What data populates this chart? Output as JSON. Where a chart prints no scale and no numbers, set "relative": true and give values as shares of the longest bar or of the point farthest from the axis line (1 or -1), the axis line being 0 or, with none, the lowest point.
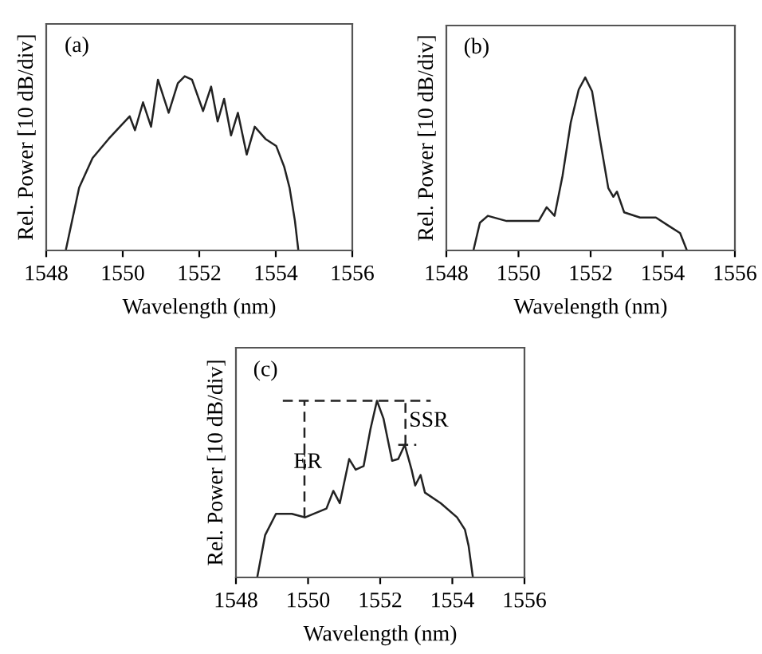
{
  "chart_data": [
    {
      "type": "line",
      "relative": true,
      "xlabel": "Wavelength (nm)",
      "ylabel": "Rel. Power [10 dB/div]",
      "xlim": [
        1548,
        1556
      ],
      "xticks": [
        1548,
        1550,
        1552,
        1554,
        1556
      ],
      "tick_labels": "x",
      "annotations": [
        "(a)"
      ],
      "series": [
        {
          "color": "#222222",
          "x": [
            1548.51,
            1548.86,
            1549.21,
            1549.63,
            1549.97,
            1550.18,
            1550.32,
            1550.53,
            1550.74,
            1550.92,
            1551.2,
            1551.44,
            1551.62,
            1551.81,
            1552.1,
            1552.31,
            1552.48,
            1552.65,
            1552.83,
            1553.01,
            1553.24,
            1553.45,
            1553.73,
            1554.01,
            1554.22,
            1554.36,
            1554.5,
            1554.59
          ],
          "values": [
            0,
            0.36,
            0.53,
            0.64,
            0.72,
            0.77,
            0.69,
            0.85,
            0.71,
            0.98,
            0.79,
            0.96,
            1.0,
            0.98,
            0.8,
            0.94,
            0.74,
            0.87,
            0.66,
            0.79,
            0.55,
            0.71,
            0.64,
            0.6,
            0.48,
            0.36,
            0.17,
            0
          ]
        }
      ]
    },
    {
      "type": "line",
      "relative": true,
      "xlabel": "Wavelength (nm)",
      "ylabel": "Rel. Power [10 dB/div]",
      "xlim": [
        1548,
        1556
      ],
      "xticks": [
        1548,
        1550,
        1552,
        1554,
        1556
      ],
      "tick_labels": "x",
      "annotations": [
        "(b)"
      ],
      "series": [
        {
          "color": "#222222",
          "x": [
            1548.75,
            1548.93,
            1549.15,
            1549.67,
            1550.56,
            1550.78,
            1551.0,
            1551.22,
            1551.45,
            1551.67,
            1551.85,
            1552.04,
            1552.26,
            1552.49,
            1552.63,
            1552.73,
            1552.93,
            1553.37,
            1553.81,
            1554.18,
            1554.48,
            1554.67
          ],
          "values": [
            0,
            0.16,
            0.2,
            0.17,
            0.17,
            0.25,
            0.2,
            0.43,
            0.74,
            0.93,
            1.0,
            0.92,
            0.64,
            0.36,
            0.31,
            0.34,
            0.22,
            0.19,
            0.19,
            0.14,
            0.1,
            0
          ]
        }
      ]
    },
    {
      "type": "line",
      "relative": true,
      "xlabel": "Wavelength (nm)",
      "ylabel": "Rel. Power [10 dB/div]",
      "xlim": [
        1548,
        1556
      ],
      "xticks": [
        1548,
        1550,
        1552,
        1554,
        1556
      ],
      "tick_labels": "x",
      "annotations": [
        "(c)",
        "ER",
        "SSR"
      ],
      "series": [
        {
          "color": "#222222",
          "x": [
            1548.59,
            1548.81,
            1549.11,
            1549.55,
            1549.92,
            1550.51,
            1550.7,
            1550.88,
            1551.14,
            1551.32,
            1551.54,
            1551.73,
            1551.91,
            1552.09,
            1552.33,
            1552.5,
            1552.68,
            1552.87,
            1552.97,
            1553.12,
            1553.24,
            1553.68,
            1554.13,
            1554.35,
            1554.45,
            1554.57
          ],
          "values": [
            0,
            0.24,
            0.36,
            0.36,
            0.34,
            0.39,
            0.49,
            0.42,
            0.67,
            0.61,
            0.63,
            0.84,
            1.0,
            0.9,
            0.66,
            0.67,
            0.75,
            0.61,
            0.52,
            0.58,
            0.48,
            0.42,
            0.34,
            0.27,
            0.18,
            0
          ]
        },
        {
          "color": "#222222",
          "line_style": "dashed",
          "x": [
            1549.3,
            1553.4
          ],
          "values": [
            1.0,
            1.0
          ]
        },
        {
          "color": "#222222",
          "line_style": "dashed",
          "x": [
            1552.5,
            1553.0
          ],
          "values": [
            0.75,
            0.75
          ]
        },
        {
          "color": "#222222",
          "line_style": "dashed",
          "x": [
            1549.9,
            1549.9
          ],
          "values": [
            0.34,
            1.0
          ]
        },
        {
          "color": "#222222",
          "line_style": "dashed",
          "x": [
            1552.7,
            1552.7
          ],
          "values": [
            0.75,
            1.0
          ]
        }
      ]
    }
  ]
}
